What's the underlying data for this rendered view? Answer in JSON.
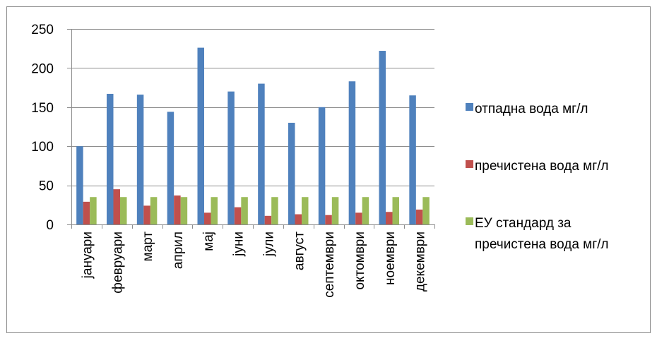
{
  "chart_data": {
    "type": "bar",
    "categories": [
      "јануари",
      "февруари",
      "март",
      "април",
      "мај",
      "јуни",
      "јули",
      "август",
      "септември",
      "октомври",
      "ноември",
      "декември"
    ],
    "series": [
      {
        "name": "отпадна вода мг/л",
        "color": "#4F81BD",
        "values": [
          100,
          167,
          166,
          144,
          226,
          170,
          180,
          130,
          150,
          183,
          222,
          165
        ]
      },
      {
        "name": "пречистена вода мг/л",
        "color": "#C0504D",
        "values": [
          29,
          45,
          24,
          37,
          15,
          22,
          11,
          13,
          12,
          15,
          16,
          19
        ]
      },
      {
        "name": "ЕУ стандард за пречистена вода мг/л",
        "name_lines": [
          "ЕУ стандард за",
          "пречистена вода мг/л"
        ],
        "color": "#9BBB59",
        "values": [
          35,
          35,
          35,
          35,
          35,
          35,
          35,
          35,
          35,
          35,
          35,
          35
        ]
      }
    ],
    "ylim": [
      0,
      250
    ],
    "yticks": [
      0,
      50,
      100,
      150,
      200,
      250
    ],
    "grid": true,
    "legend": "right",
    "title": "",
    "xlabel": "",
    "ylabel": ""
  }
}
